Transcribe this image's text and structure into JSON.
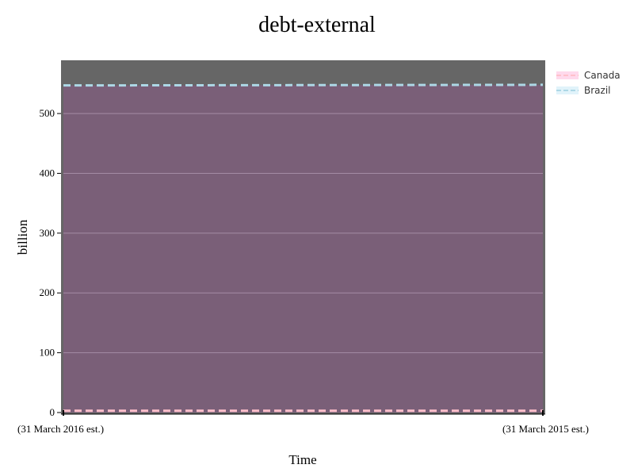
{
  "chart_data": {
    "type": "area",
    "title": "debt-external",
    "xlabel": "Time",
    "ylabel": "billion",
    "categories": [
      "(31 March 2016 est.)",
      "(31 March 2015 est.)"
    ],
    "ylim": [
      0,
      590
    ],
    "yticks": [
      0,
      100,
      200,
      300,
      400,
      500
    ],
    "grid": true,
    "legend_position": "top-right",
    "series": [
      {
        "name": "Canada",
        "values": [
          3,
          3
        ],
        "line_color": "#ffc0cb",
        "fill_color": "#ff69b4",
        "line_style": "dashed"
      },
      {
        "name": "Brazil",
        "values": [
          547,
          548
        ],
        "line_color": "#add8e6",
        "fill_color": "#87ceeb",
        "line_style": "dashed"
      }
    ],
    "colors": {
      "plot_background": "#666666",
      "area_fill": "#7a5f78",
      "grid": "#a58ca5",
      "axis": "#000000"
    }
  }
}
